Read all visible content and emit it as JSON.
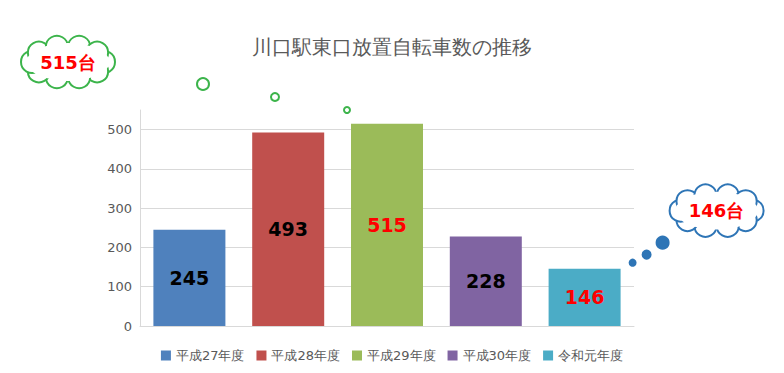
{
  "chart_data": {
    "type": "bar",
    "title": "川口駅東口放置自転車数の推移",
    "categories": [
      "平成27年度",
      "平成28年度",
      "平成29年度",
      "平成30年度",
      "令和元年度"
    ],
    "values": [
      245,
      493,
      515,
      228,
      146
    ],
    "colors": [
      "#4f81bd",
      "#c0504d",
      "#9bbb59",
      "#8064a2",
      "#4bacc6"
    ],
    "ylim": [
      0,
      550
    ],
    "yticks": [
      0,
      100,
      200,
      300,
      400,
      500
    ],
    "grid": true,
    "data_labels": true,
    "legend": "bottom",
    "tick_labels": "y",
    "annotations": [
      {
        "text": "515台",
        "category": "平成29年度"
      },
      {
        "text": "146台",
        "category": "令和元年度"
      }
    ]
  }
}
